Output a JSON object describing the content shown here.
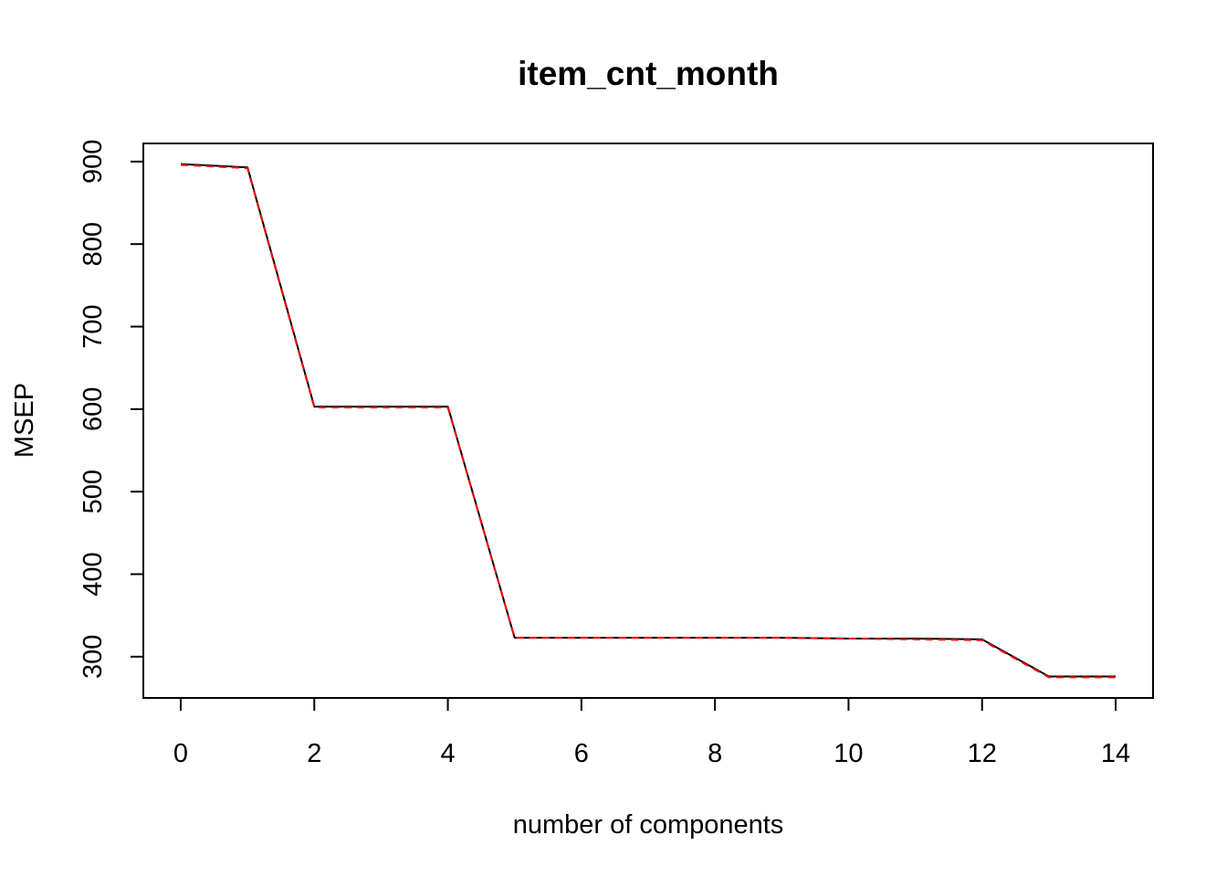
{
  "chart_data": {
    "type": "line",
    "title": "item_cnt_month",
    "xlabel": "number of components",
    "ylabel": "MSEP",
    "xlim": [
      -0.56,
      14.56
    ],
    "ylim": [
      250,
      922
    ],
    "x_ticks": [
      0,
      2,
      4,
      6,
      8,
      10,
      12,
      14
    ],
    "y_ticks": [
      300,
      400,
      500,
      600,
      700,
      800,
      900
    ],
    "grid": false,
    "legend": "none",
    "x": [
      0,
      1,
      2,
      3,
      4,
      5,
      6,
      7,
      8,
      9,
      10,
      11,
      12,
      13,
      14
    ],
    "series": [
      {
        "style": "solid",
        "color": "#000000",
        "values": [
          897,
          893,
          603,
          603,
          603,
          323,
          323,
          323,
          323,
          323,
          322,
          322,
          321,
          276,
          276
        ]
      },
      {
        "style": "dashed",
        "color": "#ff0000",
        "values": [
          896,
          892,
          602,
          602,
          602,
          323,
          323,
          323,
          323,
          323,
          322,
          321,
          320,
          275,
          275
        ]
      }
    ]
  }
}
